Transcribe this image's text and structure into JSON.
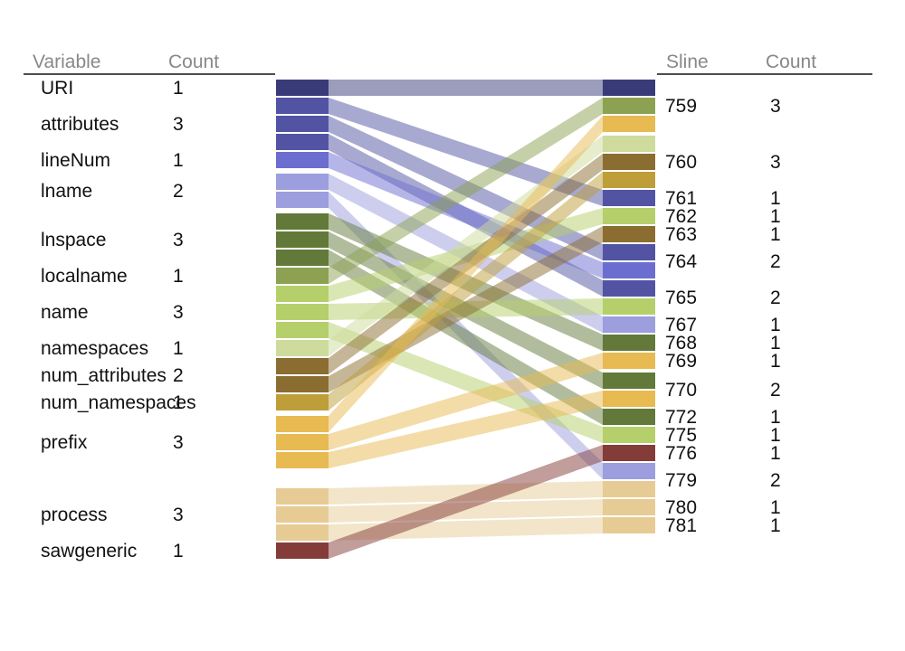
{
  "left_table": {
    "header": {
      "name": "Variable",
      "count": "Count"
    },
    "rows": [
      {
        "name": "URI",
        "count": "1"
      },
      {
        "name": "attributes",
        "count": "3"
      },
      {
        "name": "lineNum",
        "count": "1"
      },
      {
        "name": "lname",
        "count": "2"
      },
      {
        "name": "lnspace",
        "count": "3"
      },
      {
        "name": "localname",
        "count": "1"
      },
      {
        "name": "name",
        "count": "3"
      },
      {
        "name": "namespaces",
        "count": "1"
      },
      {
        "name": "num_attributes",
        "count": "2"
      },
      {
        "name": "num_namespaces",
        "count": "1"
      },
      {
        "name": "prefix",
        "count": "3"
      },
      {
        "name": "process",
        "count": "3"
      },
      {
        "name": "sawgeneric",
        "count": "1"
      }
    ]
  },
  "right_table": {
    "header": {
      "name": "Sline",
      "count": "Count"
    },
    "rows": [
      {
        "name": "759",
        "count": "3"
      },
      {
        "name": "760",
        "count": "3"
      },
      {
        "name": "761",
        "count": "1"
      },
      {
        "name": "762",
        "count": "1"
      },
      {
        "name": "763",
        "count": "1"
      },
      {
        "name": "764",
        "count": "2"
      },
      {
        "name": "765",
        "count": "2"
      },
      {
        "name": "767",
        "count": "1"
      },
      {
        "name": "768",
        "count": "1"
      },
      {
        "name": "769",
        "count": "1"
      },
      {
        "name": "770",
        "count": "2"
      },
      {
        "name": "772",
        "count": "1"
      },
      {
        "name": "775",
        "count": "1"
      },
      {
        "name": "776",
        "count": "1"
      },
      {
        "name": "779",
        "count": "2"
      },
      {
        "name": "780",
        "count": "1"
      },
      {
        "name": "781",
        "count": "1"
      }
    ]
  },
  "colors": {
    "URI": "#393b79",
    "attributes": "#5254a3",
    "lineNum": "#6b6ecf",
    "lname": "#9c9ede",
    "lnspace": "#637939",
    "localname": "#8ca252",
    "name": "#b5cf6b",
    "namespaces": "#cedb9c",
    "num_attributes": "#8c6d31",
    "num_namespaces": "#bd9e39",
    "prefix": "#e7ba52",
    "process": "#e7cb94",
    "sawgeneric": "#843c39"
  },
  "links": [
    [
      "URI",
      "759"
    ],
    [
      "attributes",
      "761"
    ],
    [
      "attributes",
      "764"
    ],
    [
      "attributes",
      "765"
    ],
    [
      "lineNum",
      "764"
    ],
    [
      "lname",
      "767"
    ],
    [
      "lname",
      "779"
    ],
    [
      "lnspace",
      "768"
    ],
    [
      "lnspace",
      "770"
    ],
    [
      "lnspace",
      "772"
    ],
    [
      "localname",
      "759"
    ],
    [
      "name",
      "762"
    ],
    [
      "name",
      "765"
    ],
    [
      "name",
      "775"
    ],
    [
      "namespaces",
      "760"
    ],
    [
      "num_attributes",
      "760"
    ],
    [
      "num_attributes",
      "763"
    ],
    [
      "num_namespaces",
      "760"
    ],
    [
      "prefix",
      "759"
    ],
    [
      "prefix",
      "769"
    ],
    [
      "prefix",
      "770"
    ],
    [
      "process",
      "779"
    ],
    [
      "process",
      "780"
    ],
    [
      "process",
      "781"
    ],
    [
      "sawgeneric",
      "776"
    ]
  ]
}
